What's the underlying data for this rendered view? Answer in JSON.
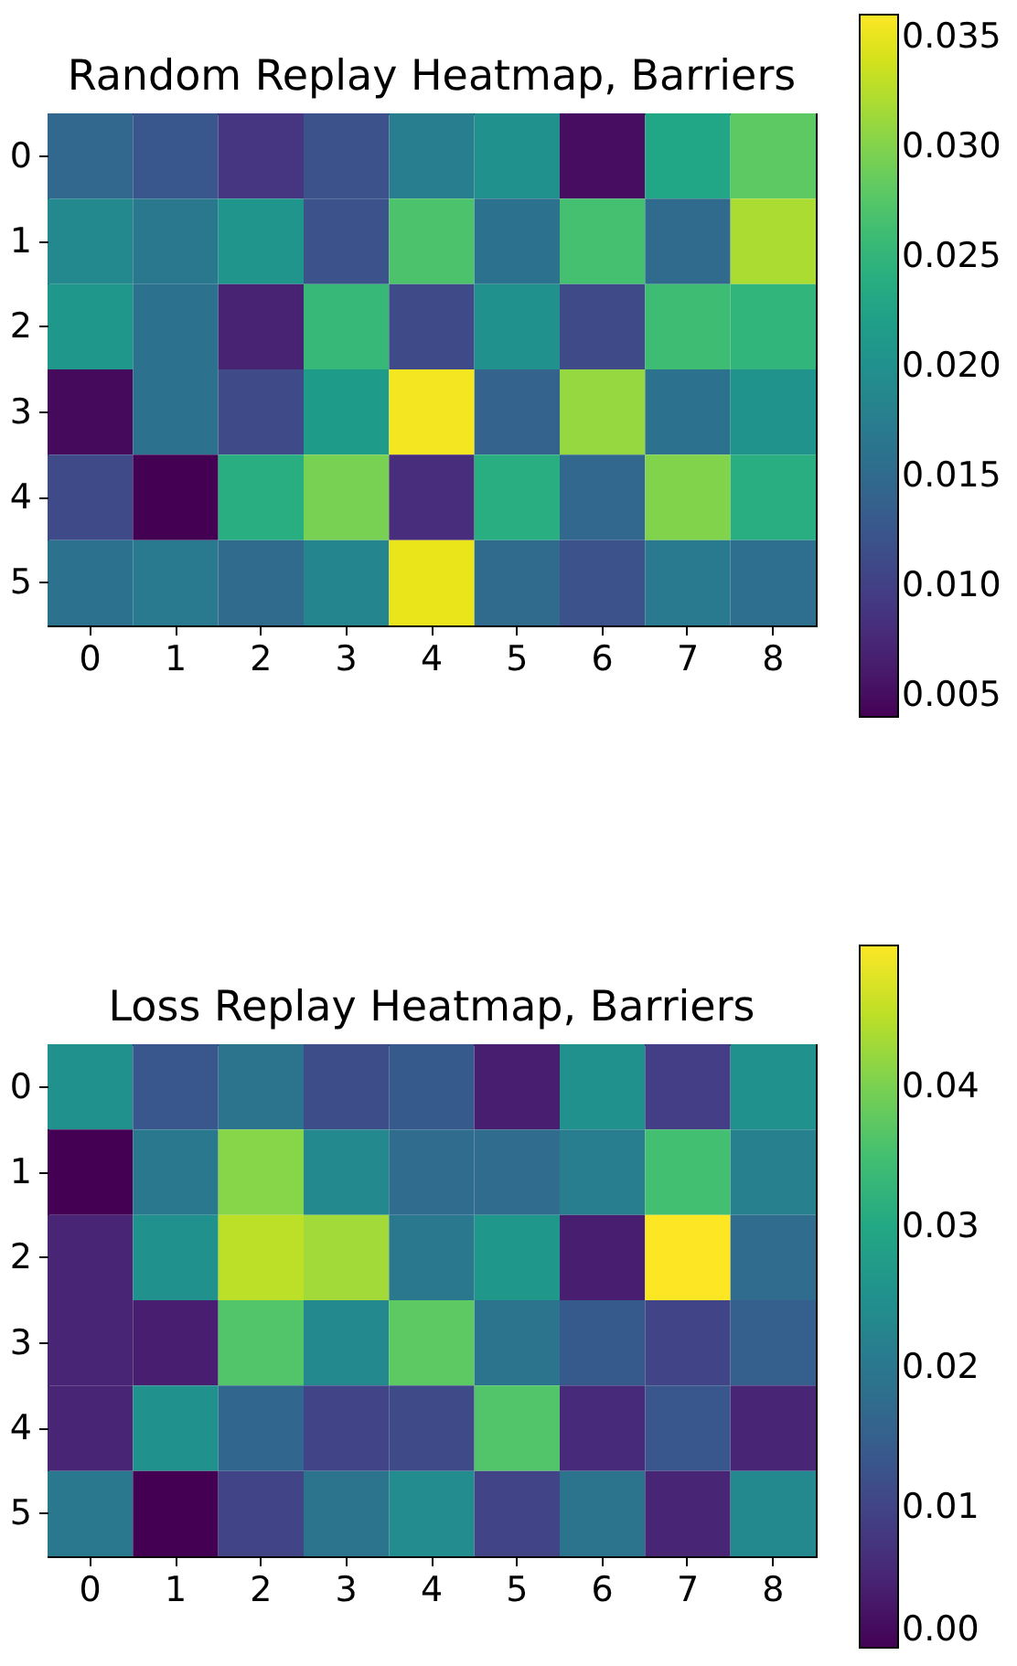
{
  "chart_data": [
    {
      "type": "heatmap",
      "title": "Random Replay Heatmap, Barriers",
      "categories": [
        "0",
        "1",
        "2",
        "3",
        "4",
        "5",
        "6",
        "7",
        "8"
      ],
      "y_categories": [
        "0",
        "1",
        "2",
        "3",
        "4",
        "5"
      ],
      "cells": [
        [
          0.0145,
          0.0126,
          0.0088,
          0.012,
          0.0175,
          0.02,
          0.005,
          0.023,
          0.028
        ],
        [
          0.019,
          0.0168,
          0.0206,
          0.012,
          0.027,
          0.016,
          0.0265,
          0.015,
          0.032
        ],
        [
          0.021,
          0.016,
          0.007,
          0.0255,
          0.011,
          0.02,
          0.011,
          0.026,
          0.025
        ],
        [
          0.0047,
          0.016,
          0.011,
          0.0215,
          0.0355,
          0.014,
          0.031,
          0.016,
          0.0205
        ],
        [
          0.011,
          0.004,
          0.024,
          0.0295,
          0.008,
          0.024,
          0.0145,
          0.03,
          0.024
        ],
        [
          0.016,
          0.017,
          0.015,
          0.0185,
          0.035,
          0.015,
          0.012,
          0.017,
          0.0155
        ]
      ],
      "clim": [
        0.004,
        0.036
      ],
      "cticks": [
        0.005,
        {
          "value": 0.01,
          "label": "0.010"
        },
        0.015,
        {
          "value": 0.02,
          "label": "0.020"
        },
        0.025,
        {
          "value": 0.03,
          "label": "0.030"
        },
        0.035
      ]
    },
    {
      "type": "heatmap",
      "title": "Loss Replay Heatmap, Barriers",
      "categories": [
        "0",
        "1",
        "2",
        "3",
        "4",
        "5",
        "6",
        "7",
        "8"
      ],
      "y_categories": [
        "0",
        "1",
        "2",
        "3",
        "4",
        "5"
      ],
      "cells": [
        [
          0.025,
          0.0135,
          0.019,
          0.0115,
          0.014,
          0.004,
          0.025,
          0.009,
          0.025
        ],
        [
          0.0,
          0.02,
          0.041,
          0.0235,
          0.0175,
          0.0175,
          0.021,
          0.035,
          0.0215
        ],
        [
          0.005,
          0.025,
          0.045,
          0.043,
          0.02,
          0.0265,
          0.004,
          0.05,
          0.0175
        ],
        [
          0.005,
          0.004,
          0.0365,
          0.0235,
          0.0375,
          0.019,
          0.014,
          0.01,
          0.015
        ],
        [
          0.005,
          0.025,
          0.0165,
          0.01,
          0.011,
          0.0365,
          0.006,
          0.0135,
          0.005
        ],
        [
          0.02,
          0.0,
          0.01,
          0.019,
          0.024,
          0.01,
          0.019,
          0.005,
          0.0235
        ]
      ],
      "clim": [
        0,
        0.05
      ],
      "cticks": [
        {
          "value": 0,
          "label": "0.00"
        },
        0.01,
        0.02,
        0.03,
        0.04
      ]
    }
  ]
}
